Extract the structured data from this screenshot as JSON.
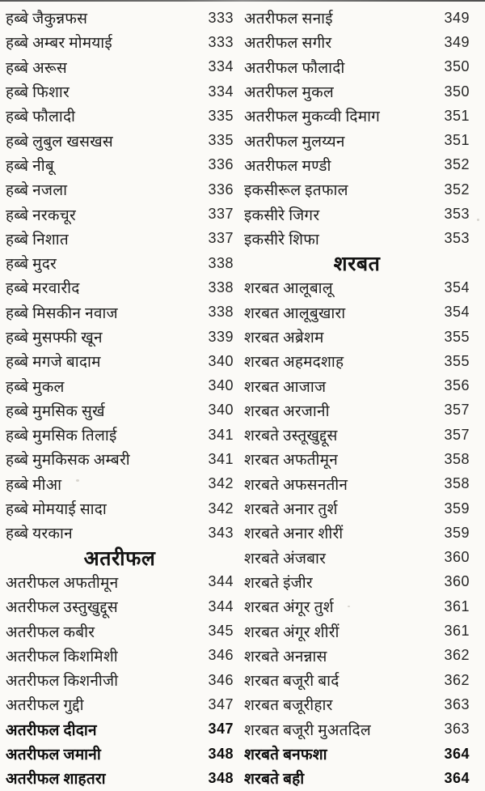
{
  "document": {
    "kind": "book-index-page",
    "language": "Hindi (Devanagari)",
    "text_color": "#1e1e1e",
    "paper_color": "#fbfaf7",
    "columns": [
      {
        "name": "left",
        "rows": [
          {
            "type": "item",
            "label": "हब्बे जैकुन्नफस",
            "page": "333"
          },
          {
            "type": "item",
            "label": "हब्बे अम्बर मोमयाई",
            "page": "333"
          },
          {
            "type": "item",
            "label": "हब्बे अरूस",
            "page": "334"
          },
          {
            "type": "item",
            "label": "हब्बे फिशार",
            "page": "334"
          },
          {
            "type": "item",
            "label": "हब्बे फौलादी",
            "page": "335"
          },
          {
            "type": "item",
            "label": "हब्बे लुबुल खसखस",
            "page": "335"
          },
          {
            "type": "item",
            "label": "हब्बे नीबू",
            "page": "336"
          },
          {
            "type": "item",
            "label": "हब्बे नजला",
            "page": "336"
          },
          {
            "type": "item",
            "label": "हब्बे नरकचूर",
            "page": "337"
          },
          {
            "type": "item",
            "label": "हब्बे निशात",
            "page": "337"
          },
          {
            "type": "item",
            "label": "हब्बे मुदर",
            "page": "338"
          },
          {
            "type": "item",
            "label": "हब्बे मरवारीद",
            "page": "338"
          },
          {
            "type": "item",
            "label": "हब्बे मिसकीन नवाज",
            "page": "338"
          },
          {
            "type": "item",
            "label": "हब्बे मुसफ्फी खून",
            "page": "339"
          },
          {
            "type": "item",
            "label": "हब्बे मगजे बादाम",
            "page": "340"
          },
          {
            "type": "item",
            "label": "हब्बे मुकल",
            "page": "340"
          },
          {
            "type": "item",
            "label": "हब्बे मुमसिक सुर्ख",
            "page": "340"
          },
          {
            "type": "item",
            "label": "हब्बे मुमसिक तिलाई",
            "page": "341"
          },
          {
            "type": "item",
            "label": "हब्बे मुमकिसक अम्बरी",
            "page": "341"
          },
          {
            "type": "item",
            "label": "हब्बे मीआ",
            "page": "342"
          },
          {
            "type": "item",
            "label": "हब्बे मोमयाई सादा",
            "page": "342"
          },
          {
            "type": "item",
            "label": "हब्बे यरकान",
            "page": "343"
          },
          {
            "type": "heading",
            "label": "अतरीफल"
          },
          {
            "type": "item",
            "label": "अतरीफल अफतीमून",
            "page": "344"
          },
          {
            "type": "item",
            "label": "अतरीफल उस्तुखुद्दूस",
            "page": "344"
          },
          {
            "type": "item",
            "label": "अतरीफल कबीर",
            "page": "345"
          },
          {
            "type": "item",
            "label": "अतरीफल किशमिशी",
            "page": "346"
          },
          {
            "type": "item",
            "label": "अतरीफल किशनीजी",
            "page": "346"
          },
          {
            "type": "item",
            "label": "अतरीफल गुद्दी",
            "page": "347"
          },
          {
            "type": "item",
            "label": "अतरीफल दीदान",
            "page": "347",
            "bold": true
          },
          {
            "type": "item",
            "label": "अतरीफल जमानी",
            "page": "348",
            "bold": true
          },
          {
            "type": "item",
            "label": "अतरीफल शाहतरा",
            "page": "348",
            "bold": true
          }
        ]
      },
      {
        "name": "right",
        "rows": [
          {
            "type": "item",
            "label": "अतरीफल सनाई",
            "page": "349"
          },
          {
            "type": "item",
            "label": "अतरीफल सगीर",
            "page": "349"
          },
          {
            "type": "item",
            "label": "अतरीफल फौलादी",
            "page": "350"
          },
          {
            "type": "item",
            "label": "अतरीफल मुकल",
            "page": "350"
          },
          {
            "type": "item",
            "label": "अतरीफल मुकव्वी दिमाग",
            "page": "351"
          },
          {
            "type": "item",
            "label": "अतरीफल मुलय्यन",
            "page": "351"
          },
          {
            "type": "item",
            "label": "अतरीफल मण्डी",
            "page": "352"
          },
          {
            "type": "item",
            "label": "इकसीरूल इतफाल",
            "page": "352"
          },
          {
            "type": "item",
            "label": "इकसीरे जिगर",
            "page": "353"
          },
          {
            "type": "item",
            "label": "इकसीरे शिफा",
            "page": "353"
          },
          {
            "type": "heading",
            "label": "शरबत"
          },
          {
            "type": "item",
            "label": "शरबत आलूबालू",
            "page": "354"
          },
          {
            "type": "item",
            "label": "शरबत आलूबुखारा",
            "page": "354"
          },
          {
            "type": "item",
            "label": "शरबत अब्रेशम",
            "page": "355"
          },
          {
            "type": "item",
            "label": "शरबत अहमदशाह",
            "page": "355"
          },
          {
            "type": "item",
            "label": "शरबत आजाज",
            "page": "356"
          },
          {
            "type": "item",
            "label": "शरबत अरजानी",
            "page": "357"
          },
          {
            "type": "item",
            "label": "शरबते उस्तूखुद्दूस",
            "page": "357"
          },
          {
            "type": "item",
            "label": "शरबत अफतीमून",
            "page": "358"
          },
          {
            "type": "item",
            "label": "शरबते अफसनतीन",
            "page": "358"
          },
          {
            "type": "item",
            "label": "शरबते अनार तुर्श",
            "page": "359"
          },
          {
            "type": "item",
            "label": "शरबते अनार शीरीं",
            "page": "359"
          },
          {
            "type": "item",
            "label": "शरबते अंजबार",
            "page": "360"
          },
          {
            "type": "item",
            "label": "शरबते इंजीर",
            "page": "360"
          },
          {
            "type": "item",
            "label": "शरबत अंगूर तुर्श",
            "page": "361"
          },
          {
            "type": "item",
            "label": "शरबत अंगूर शीरीं",
            "page": "361"
          },
          {
            "type": "item",
            "label": "शरबते अनन्नास",
            "page": "362"
          },
          {
            "type": "item",
            "label": "शरबत बजूरी बार्द",
            "page": "362"
          },
          {
            "type": "item",
            "label": "शरबत बजूरीहार",
            "page": "363"
          },
          {
            "type": "item",
            "label": "शरबत बजूरी मुअतदिल",
            "page": "363"
          },
          {
            "type": "item",
            "label": "शरबते बनफशा",
            "page": "364",
            "bold": true
          },
          {
            "type": "item",
            "label": "शरबते बही",
            "page": "364",
            "bold": true
          }
        ]
      }
    ]
  }
}
